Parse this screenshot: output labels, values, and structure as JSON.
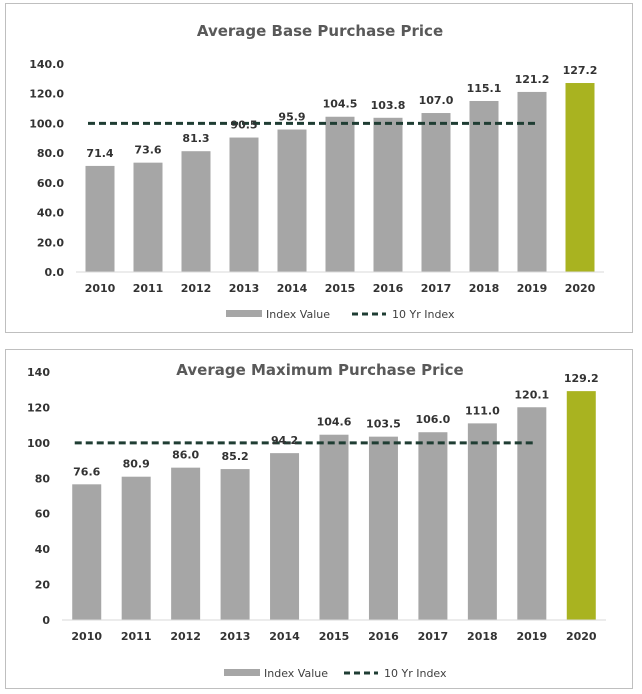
{
  "chart_data": [
    {
      "type": "bar",
      "title": "Average Base Purchase Price",
      "categories": [
        "2010",
        "2011",
        "2012",
        "2013",
        "2014",
        "2015",
        "2016",
        "2017",
        "2018",
        "2019",
        "2020"
      ],
      "series": [
        {
          "name": "Index Value",
          "type": "bar",
          "values": [
            71.4,
            73.6,
            81.3,
            90.5,
            95.9,
            104.5,
            103.8,
            107.0,
            115.1,
            121.2,
            127.2
          ],
          "labels": [
            "71.4",
            "73.6",
            "81.3",
            "90.5",
            "95.9",
            "104.5",
            "103.8",
            "107.0",
            "115.1",
            "121.2",
            "127.2"
          ]
        },
        {
          "name": "10 Yr Index",
          "type": "line",
          "style": "dashed",
          "value": 100
        }
      ],
      "ylim": [
        0,
        140
      ],
      "yticks": [
        "0.0",
        "20.0",
        "40.0",
        "60.0",
        "80.0",
        "100.0",
        "120.0",
        "140.0"
      ],
      "grid": false,
      "legend": "bottom",
      "colors": {
        "bar": "#a6a6a6",
        "highlight": "#a9b320",
        "line": "#1f3d33"
      }
    },
    {
      "type": "bar",
      "title": "Average Maximum Purchase Price",
      "categories": [
        "2010",
        "2011",
        "2012",
        "2013",
        "2014",
        "2015",
        "2016",
        "2017",
        "2018",
        "2019",
        "2020"
      ],
      "series": [
        {
          "name": "Index Value",
          "type": "bar",
          "values": [
            76.6,
            80.9,
            86.0,
            85.2,
            94.2,
            104.6,
            103.5,
            106.0,
            111.0,
            120.1,
            129.2
          ],
          "labels": [
            "76.6",
            "80.9",
            "86.0",
            "85.2",
            "94.2",
            "104.6",
            "103.5",
            "106.0",
            "111.0",
            "120.1",
            "129.2"
          ]
        },
        {
          "name": "10 Yr Index",
          "type": "line",
          "style": "dashed",
          "value": 100
        }
      ],
      "ylim": [
        0,
        140
      ],
      "yticks": [
        "0",
        "20",
        "40",
        "60",
        "80",
        "100",
        "120",
        "140"
      ],
      "grid": false,
      "legend": "bottom",
      "colors": {
        "bar": "#a6a6a6",
        "highlight": "#a9b320",
        "line": "#1f3d33"
      }
    }
  ]
}
